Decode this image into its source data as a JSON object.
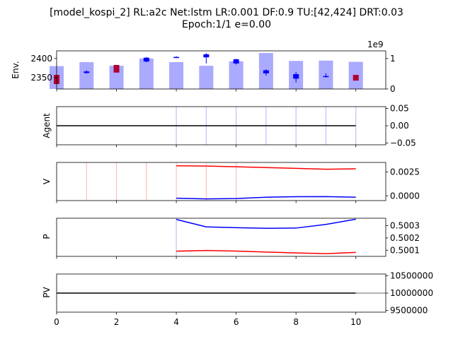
{
  "chart_data": {
    "type": "line",
    "title_line1": "[model_kospi_2] RL:a2c Net:lstm LR:0.001 DF:0.9 TU:[42,424] DRT:0.03",
    "title_line2": "Epoch:1/1 e=0.00",
    "x_ticks": [
      "0",
      "2",
      "4",
      "6",
      "8",
      "10"
    ],
    "xlim": [
      0,
      11
    ],
    "colors": {
      "up_candle": "#0000ff",
      "down_candle": "#b00030",
      "volume": "#aaaaff",
      "sell_line": "#ff0000",
      "buy_line": "#0000ff",
      "pv_line": "#000000",
      "pv_line_tail": "#999999"
    },
    "panels": [
      {
        "id": "env",
        "ylabel": "Env.",
        "left_ticks": [
          "2350",
          "2400"
        ],
        "left_ylim": [
          2320,
          2420
        ],
        "right_ticks": [
          "0",
          "1"
        ],
        "right_offset": "1e9",
        "right_ylim": [
          0,
          1250000000
        ],
        "volume": [
          750000000,
          880000000,
          760000000,
          1000000000,
          880000000,
          760000000,
          910000000,
          1180000000,
          920000000,
          930000000,
          890000000
        ],
        "candles": [
          {
            "x": 0,
            "open": 2357,
            "close": 2333,
            "high": 2357,
            "low": 2333
          },
          {
            "x": 1,
            "open": 2362,
            "close": 2366,
            "high": 2369,
            "low": 2360
          },
          {
            "x": 2,
            "open": 2383,
            "close": 2363,
            "high": 2383,
            "low": 2363
          },
          {
            "x": 3,
            "open": 2392,
            "close": 2402,
            "high": 2404,
            "low": 2390
          },
          {
            "x": 4,
            "open": 2403,
            "close": 2404,
            "high": 2406,
            "low": 2401
          },
          {
            "x": 5,
            "open": 2403,
            "close": 2411,
            "high": 2414,
            "low": 2387
          },
          {
            "x": 6,
            "open": 2387,
            "close": 2398,
            "high": 2399,
            "low": 2384
          },
          {
            "x": 7,
            "open": 2361,
            "close": 2369,
            "high": 2372,
            "low": 2355
          },
          {
            "x": 8,
            "open": 2347,
            "close": 2359,
            "high": 2365,
            "low": 2337
          },
          {
            "x": 9,
            "open": 2352,
            "close": 2354,
            "high": 2361,
            "low": 2350
          },
          {
            "x": 10,
            "open": 2357,
            "close": 2342,
            "high": 2357,
            "low": 2342
          }
        ]
      },
      {
        "id": "agent",
        "ylabel": "Agent",
        "ticks": [
          "0.05",
          "0.00",
          "−0.05"
        ],
        "tick_values": [
          0.05,
          0,
          -0.05
        ],
        "ylim": [
          -0.055,
          0.055
        ],
        "vlines": [
          4,
          5,
          6,
          7,
          8,
          9,
          10
        ],
        "line": {
          "x": [
            0,
            10
          ],
          "y": [
            0,
            0
          ]
        }
      },
      {
        "id": "v",
        "ylabel": "V",
        "ticks": [
          "0.0025",
          "0.0000"
        ],
        "tick_values": [
          0.0025,
          0
        ],
        "ylim": [
          -0.0005,
          0.0035
        ],
        "vlines": [
          1,
          2,
          3,
          4,
          5,
          6
        ],
        "sell": {
          "x": [
            4,
            5,
            6,
            7,
            8,
            9,
            10
          ],
          "y": [
            0.00315,
            0.00312,
            0.00305,
            0.00296,
            0.00288,
            0.00279,
            0.00283
          ]
        },
        "buy": {
          "x": [
            4,
            5,
            6,
            7,
            8,
            9,
            10
          ],
          "y": [
            -0.00025,
            -0.00032,
            -0.00029,
            -0.00015,
            -9e-05,
            -8e-05,
            -0.00015
          ]
        }
      },
      {
        "id": "p",
        "ylabel": "P",
        "ticks": [
          "0.5003",
          "0.5002",
          "0.5001"
        ],
        "tick_values": [
          0.5003,
          0.5002,
          0.5001
        ],
        "ylim": [
          0.50005,
          0.50036
        ],
        "vlines": [
          4
        ],
        "buy": {
          "x": [
            4,
            5,
            6,
            7,
            8,
            9,
            10
          ],
          "y": [
            0.50035,
            0.50029,
            0.500283,
            0.500278,
            0.50028,
            0.50031,
            0.500352
          ]
        },
        "sell": {
          "x": [
            4,
            5,
            6,
            7,
            8,
            9,
            10
          ],
          "y": [
            0.500092,
            0.500098,
            0.500093,
            0.500085,
            0.500078,
            0.500072,
            0.500082
          ]
        }
      },
      {
        "id": "pv",
        "ylabel": "PV",
        "ticks": [
          "10500000",
          "10000000",
          "9500000"
        ],
        "tick_values": [
          10500000,
          10000000,
          9500000
        ],
        "ylim": [
          9450000,
          10550000
        ],
        "line": {
          "x": [
            0,
            10
          ],
          "y": [
            10000000,
            10000000
          ]
        },
        "tail": {
          "x": [
            10,
            11
          ],
          "y": [
            10000000,
            10000000
          ]
        }
      }
    ]
  }
}
